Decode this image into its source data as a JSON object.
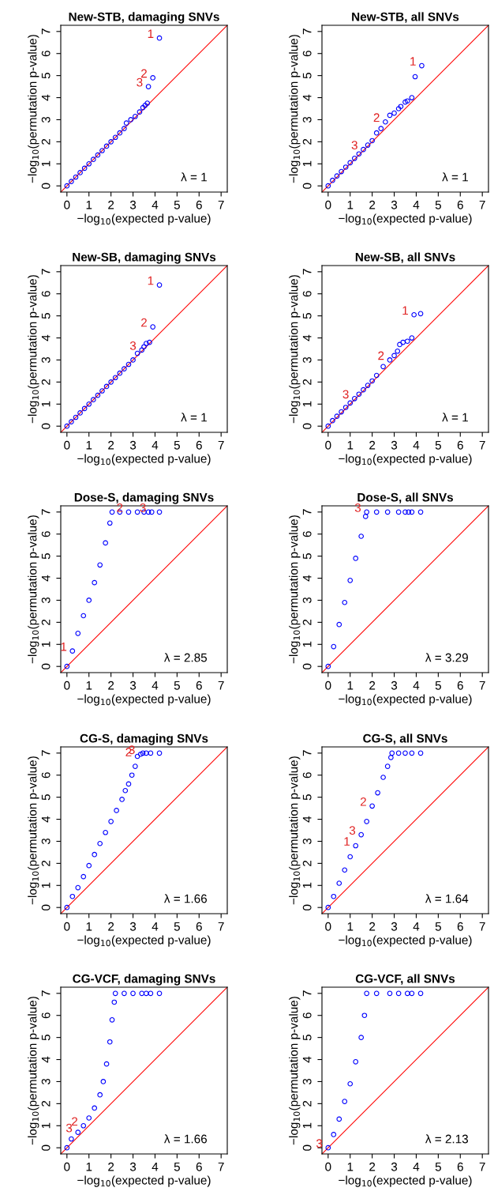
{
  "chart_data": [
    {
      "type": "scatter",
      "title": "New-STB, damaging SNVs",
      "xlabel": "−log$_{10}$(expected p-value)",
      "ylabel": "−log$_{10}$(permutation p-value)",
      "marker": "circle",
      "grid": false,
      "xlim": [
        -0.28,
        7.28
      ],
      "ylim": [
        -0.28,
        7.28
      ],
      "xticks": [
        0,
        1,
        2,
        3,
        4,
        5,
        6,
        7
      ],
      "yticks": [
        0,
        1,
        2,
        3,
        4,
        5,
        6,
        7
      ],
      "series": [
        {
          "color": "#0000ff",
          "x": [
            0,
            0.2,
            0.4,
            0.6,
            0.8,
            1.0,
            1.2,
            1.4,
            1.6,
            1.8,
            2.0,
            2.2,
            2.4,
            2.6,
            2.7,
            2.9,
            3.1,
            3.3,
            3.45,
            3.55,
            3.65,
            3.7,
            3.9,
            4.2
          ],
          "values": [
            0,
            0.2,
            0.4,
            0.6,
            0.8,
            1.0,
            1.2,
            1.4,
            1.6,
            1.8,
            2.0,
            2.2,
            2.4,
            2.6,
            2.85,
            3.0,
            3.15,
            3.35,
            3.55,
            3.65,
            3.75,
            4.5,
            4.9,
            6.7
          ]
        },
        {
          "type": "line",
          "color": "#ff0000",
          "marker": "none",
          "x": [
            -0.28,
            7.28
          ],
          "values": [
            -0.28,
            7.28
          ]
        }
      ],
      "annotations": [
        {
          "text": "1",
          "x": 4.2,
          "y": 6.7
        },
        {
          "text": "2",
          "x": 3.9,
          "y": 4.9
        },
        {
          "text": "3",
          "x": 3.7,
          "y": 4.5
        },
        "λ = 1"
      ]
    },
    {
      "type": "scatter",
      "title": "New-STB, all SNVs",
      "xlabel": "−log$_{10}$(expected p-value)",
      "ylabel": "−log$_{10}$(permutation p-value)",
      "marker": "circle",
      "grid": false,
      "xlim": [
        -0.28,
        7.28
      ],
      "ylim": [
        -0.28,
        7.28
      ],
      "xticks": [
        0,
        1,
        2,
        3,
        4,
        5,
        6,
        7
      ],
      "yticks": [
        0,
        1,
        2,
        3,
        4,
        5,
        6,
        7
      ],
      "series": [
        {
          "color": "#0000ff",
          "x": [
            0,
            0.2,
            0.4,
            0.6,
            0.8,
            1.0,
            1.2,
            1.4,
            1.6,
            1.8,
            2.0,
            2.2,
            2.4,
            2.6,
            2.8,
            3.0,
            3.2,
            3.3,
            3.5,
            3.6,
            3.8,
            3.95,
            4.25
          ],
          "values": [
            0,
            0.25,
            0.45,
            0.65,
            0.85,
            1.05,
            1.25,
            1.45,
            1.65,
            1.85,
            2.05,
            2.4,
            2.6,
            2.9,
            3.2,
            3.3,
            3.5,
            3.6,
            3.8,
            3.85,
            4.0,
            4.95,
            5.45
          ]
        },
        {
          "type": "line",
          "color": "#ff0000",
          "marker": "none",
          "x": [
            -0.28,
            7.28
          ],
          "values": [
            -0.28,
            7.28
          ]
        }
      ],
      "annotations": [
        {
          "text": "1",
          "x": 4.25,
          "y": 5.45
        },
        {
          "text": "2",
          "x": 2.6,
          "y": 2.9
        },
        {
          "text": "3",
          "x": 1.6,
          "y": 1.65
        },
        "λ = 1"
      ]
    },
    {
      "type": "scatter",
      "title": "New-SB, damaging SNVs",
      "xlabel": "−log$_{10}$(expected p-value)",
      "ylabel": "−log$_{10}$(permutation p-value)",
      "marker": "circle",
      "grid": false,
      "xlim": [
        -0.28,
        7.28
      ],
      "ylim": [
        -0.28,
        7.28
      ],
      "xticks": [
        0,
        1,
        2,
        3,
        4,
        5,
        6,
        7
      ],
      "yticks": [
        0,
        1,
        2,
        3,
        4,
        5,
        6,
        7
      ],
      "series": [
        {
          "color": "#0000ff",
          "x": [
            0,
            0.2,
            0.4,
            0.6,
            0.8,
            1.0,
            1.2,
            1.4,
            1.6,
            1.8,
            2.0,
            2.2,
            2.4,
            2.6,
            2.8,
            3.0,
            3.2,
            3.4,
            3.5,
            3.6,
            3.75,
            3.9,
            4.2
          ],
          "values": [
            0,
            0.2,
            0.4,
            0.6,
            0.8,
            1.0,
            1.2,
            1.4,
            1.6,
            1.8,
            2.0,
            2.2,
            2.4,
            2.6,
            2.8,
            3.0,
            3.3,
            3.45,
            3.6,
            3.75,
            3.8,
            4.5,
            6.4
          ]
        },
        {
          "type": "line",
          "color": "#ff0000",
          "marker": "none",
          "x": [
            -0.28,
            7.28
          ],
          "values": [
            -0.28,
            7.28
          ]
        }
      ],
      "annotations": [
        {
          "text": "1",
          "x": 4.2,
          "y": 6.4
        },
        {
          "text": "2",
          "x": 3.9,
          "y": 4.5
        },
        {
          "text": "3",
          "x": 3.4,
          "y": 3.45
        },
        "λ = 1"
      ]
    },
    {
      "type": "scatter",
      "title": "New-SB, all SNVs",
      "xlabel": "−log$_{10}$(expected p-value)",
      "ylabel": "−log$_{10}$(permutation p-value)",
      "marker": "circle",
      "grid": false,
      "xlim": [
        -0.28,
        7.28
      ],
      "ylim": [
        -0.28,
        7.28
      ],
      "xticks": [
        0,
        1,
        2,
        3,
        4,
        5,
        6,
        7
      ],
      "yticks": [
        0,
        1,
        2,
        3,
        4,
        5,
        6,
        7
      ],
      "series": [
        {
          "color": "#0000ff",
          "x": [
            0,
            0.2,
            0.4,
            0.6,
            0.8,
            1.0,
            1.2,
            1.4,
            1.6,
            1.8,
            2.0,
            2.2,
            2.5,
            2.8,
            3.0,
            3.15,
            3.25,
            3.4,
            3.6,
            3.8,
            3.9,
            4.2
          ],
          "values": [
            0,
            0.25,
            0.45,
            0.65,
            0.85,
            1.05,
            1.25,
            1.45,
            1.65,
            1.85,
            2.05,
            2.3,
            2.7,
            3.0,
            3.2,
            3.4,
            3.7,
            3.8,
            3.85,
            4.0,
            5.05,
            5.1
          ]
        },
        {
          "type": "line",
          "color": "#ff0000",
          "marker": "none",
          "x": [
            -0.28,
            7.28
          ],
          "values": [
            -0.28,
            7.28
          ]
        }
      ],
      "annotations": [
        {
          "text": "1",
          "x": 3.9,
          "y": 5.05
        },
        {
          "text": "2",
          "x": 2.8,
          "y": 3.0
        },
        {
          "text": "3",
          "x": 1.2,
          "y": 1.25
        },
        "λ = 1"
      ]
    },
    {
      "type": "scatter",
      "title": "Dose-S, damaging SNVs",
      "xlabel": "−log$_{10}$(expected p-value)",
      "ylabel": "−log$_{10}$(permutation p-value)",
      "marker": "circle",
      "grid": false,
      "xlim": [
        -0.28,
        7.28
      ],
      "ylim": [
        -0.28,
        7.28
      ],
      "xticks": [
        0,
        1,
        2,
        3,
        4,
        5,
        6,
        7
      ],
      "yticks": [
        0,
        1,
        2,
        3,
        4,
        5,
        6,
        7
      ],
      "series": [
        {
          "color": "#0000ff",
          "x": [
            0,
            0.25,
            0.5,
            0.75,
            1.0,
            1.25,
            1.5,
            1.75,
            1.95,
            2.05,
            2.4,
            2.8,
            3.2,
            3.5,
            3.7,
            3.85,
            4.2
          ],
          "values": [
            0,
            0.7,
            1.5,
            2.3,
            3.0,
            3.8,
            4.6,
            5.6,
            6.5,
            7.0,
            7.0,
            7.0,
            7.0,
            7.0,
            7.0,
            7.0,
            7.0
          ]
        },
        {
          "type": "line",
          "color": "#ff0000",
          "marker": "none",
          "x": [
            -0.28,
            7.28
          ],
          "values": [
            -0.28,
            7.28
          ]
        }
      ],
      "annotations": [
        {
          "text": "1",
          "x": 0.25,
          "y": 0.7
        },
        {
          "text": "2",
          "x": 2.8,
          "y": 7.0
        },
        {
          "text": "3",
          "x": 3.85,
          "y": 7.0
        },
        "λ = 2.85"
      ]
    },
    {
      "type": "scatter",
      "title": "Dose-S, all SNVs",
      "xlabel": "−log$_{10}$(expected p-value)",
      "ylabel": "−log$_{10}$(permutation p-value)",
      "marker": "circle",
      "grid": false,
      "xlim": [
        -0.28,
        7.28
      ],
      "ylim": [
        -0.28,
        7.28
      ],
      "xticks": [
        0,
        1,
        2,
        3,
        4,
        5,
        6,
        7
      ],
      "yticks": [
        0,
        1,
        2,
        3,
        4,
        5,
        6,
        7
      ],
      "series": [
        {
          "color": "#0000ff",
          "x": [
            0,
            0.25,
            0.5,
            0.75,
            1.0,
            1.25,
            1.5,
            1.7,
            1.75,
            2.2,
            2.7,
            3.2,
            3.5,
            3.65,
            3.8,
            4.2
          ],
          "values": [
            0,
            0.9,
            1.9,
            2.9,
            3.9,
            4.9,
            5.9,
            6.8,
            7.0,
            7.0,
            7.0,
            7.0,
            7.0,
            7.0,
            7.0,
            7.0
          ]
        },
        {
          "type": "line",
          "color": "#ff0000",
          "marker": "none",
          "x": [
            -0.28,
            7.28
          ],
          "values": [
            -0.28,
            7.28
          ]
        }
      ],
      "annotations": [
        {
          "text": "3",
          "x": 1.75,
          "y": 7.0
        },
        "λ = 3.29"
      ]
    },
    {
      "type": "scatter",
      "title": "CG-S, damaging SNVs",
      "xlabel": "−log$_{10}$(expected p-value)",
      "ylabel": "−log$_{10}$(permutation p-value)",
      "marker": "circle",
      "grid": false,
      "xlim": [
        -0.28,
        7.28
      ],
      "ylim": [
        -0.28,
        7.28
      ],
      "xticks": [
        0,
        1,
        2,
        3,
        4,
        5,
        6,
        7
      ],
      "yticks": [
        0,
        1,
        2,
        3,
        4,
        5,
        6,
        7
      ],
      "series": [
        {
          "color": "#0000ff",
          "x": [
            0,
            0.25,
            0.5,
            0.75,
            1.0,
            1.25,
            1.5,
            1.75,
            2.0,
            2.25,
            2.5,
            2.65,
            2.8,
            2.95,
            3.1,
            3.2,
            3.35,
            3.45,
            3.6,
            3.8,
            4.2
          ],
          "values": [
            0,
            0.5,
            0.9,
            1.4,
            1.9,
            2.4,
            2.9,
            3.4,
            3.9,
            4.4,
            4.9,
            5.3,
            5.6,
            6.0,
            6.4,
            6.85,
            6.95,
            7.0,
            7.0,
            7.0,
            7.0
          ]
        },
        {
          "type": "line",
          "color": "#ff0000",
          "marker": "none",
          "x": [
            -0.28,
            7.28
          ],
          "values": [
            -0.28,
            7.28
          ]
        }
      ],
      "annotations": [
        {
          "text": "2",
          "x": 3.2,
          "y": 6.85
        },
        {
          "text": "3",
          "x": 3.35,
          "y": 6.95
        },
        "λ = 1.66"
      ]
    },
    {
      "type": "scatter",
      "title": "CG-S, all SNVs",
      "xlabel": "−log$_{10}$(expected p-value)",
      "ylabel": "−log$_{10}$(permutation p-value)",
      "marker": "circle",
      "grid": false,
      "xlim": [
        -0.28,
        7.28
      ],
      "ylim": [
        -0.28,
        7.28
      ],
      "xticks": [
        0,
        1,
        2,
        3,
        4,
        5,
        6,
        7
      ],
      "yticks": [
        0,
        1,
        2,
        3,
        4,
        5,
        6,
        7
      ],
      "series": [
        {
          "color": "#0000ff",
          "x": [
            0,
            0.25,
            0.5,
            0.75,
            1.0,
            1.25,
            1.5,
            1.75,
            2.0,
            2.25,
            2.5,
            2.7,
            2.85,
            2.9,
            3.2,
            3.5,
            3.8,
            4.2
          ],
          "values": [
            0,
            0.5,
            1.1,
            1.7,
            2.3,
            2.8,
            3.3,
            3.9,
            4.6,
            5.2,
            5.9,
            6.4,
            6.8,
            7.0,
            7.0,
            7.0,
            7.0,
            7.0
          ]
        },
        {
          "type": "line",
          "color": "#ff0000",
          "marker": "none",
          "x": [
            -0.28,
            7.28
          ],
          "values": [
            -0.28,
            7.28
          ]
        }
      ],
      "annotations": [
        {
          "text": "1",
          "x": 1.25,
          "y": 2.8
        },
        {
          "text": "2",
          "x": 2.0,
          "y": 4.6
        },
        {
          "text": "3",
          "x": 1.5,
          "y": 3.3
        },
        "λ = 1.64"
      ]
    },
    {
      "type": "scatter",
      "title": "CG-VCF, damaging SNVs",
      "xlabel": "−log$_{10}$(expected p-value)",
      "ylabel": "−log$_{10}$(permutation p-value)",
      "marker": "circle",
      "grid": false,
      "xlim": [
        -0.28,
        7.28
      ],
      "ylim": [
        -0.28,
        7.28
      ],
      "xticks": [
        0,
        1,
        2,
        3,
        4,
        5,
        6,
        7
      ],
      "yticks": [
        0,
        1,
        2,
        3,
        4,
        5,
        6,
        7
      ],
      "series": [
        {
          "color": "#0000ff",
          "x": [
            0,
            0.2,
            0.5,
            0.75,
            1.0,
            1.25,
            1.5,
            1.65,
            1.8,
            1.95,
            2.05,
            2.15,
            2.2,
            2.6,
            3.0,
            3.4,
            3.6,
            3.8,
            4.2
          ],
          "values": [
            0,
            0.4,
            0.7,
            1.0,
            1.35,
            1.8,
            2.4,
            3.0,
            3.8,
            4.8,
            5.8,
            6.6,
            7.0,
            7.0,
            7.0,
            7.0,
            7.0,
            7.0,
            7.0
          ]
        },
        {
          "type": "line",
          "color": "#ff0000",
          "marker": "none",
          "x": [
            -0.28,
            7.28
          ],
          "values": [
            -0.28,
            7.28
          ]
        }
      ],
      "annotations": [
        {
          "text": "2",
          "x": 0.75,
          "y": 1.0
        },
        {
          "text": "3",
          "x": 0.5,
          "y": 0.7
        },
        "λ = 1.66"
      ]
    },
    {
      "type": "scatter",
      "title": "CG-VCF, all SNVs",
      "xlabel": "−log$_{10}$(expected p-value)",
      "ylabel": "−log$_{10}$(permutation p-value)",
      "marker": "circle",
      "grid": false,
      "xlim": [
        -0.28,
        7.28
      ],
      "ylim": [
        -0.28,
        7.28
      ],
      "xticks": [
        0,
        1,
        2,
        3,
        4,
        5,
        6,
        7
      ],
      "yticks": [
        0,
        1,
        2,
        3,
        4,
        5,
        6,
        7
      ],
      "series": [
        {
          "color": "#0000ff",
          "x": [
            0,
            0.25,
            0.5,
            0.75,
            1.0,
            1.25,
            1.5,
            1.65,
            1.75,
            2.2,
            2.8,
            3.2,
            3.6,
            3.8,
            4.2
          ],
          "values": [
            0,
            0.6,
            1.3,
            2.1,
            2.9,
            3.9,
            5.0,
            6.0,
            7.0,
            7.0,
            7.0,
            7.0,
            7.0,
            7.0,
            7.0
          ]
        },
        {
          "type": "line",
          "color": "#ff0000",
          "marker": "none",
          "x": [
            -0.28,
            7.28
          ],
          "values": [
            -0.28,
            7.28
          ]
        }
      ],
      "annotations": [
        {
          "text": "3",
          "x": 0,
          "y": 0
        },
        "λ = 2.13"
      ]
    }
  ]
}
